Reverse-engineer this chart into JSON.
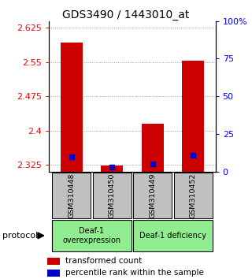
{
  "title": "GDS3490 / 1443010_at",
  "samples": [
    "GSM310448",
    "GSM310450",
    "GSM310449",
    "GSM310452"
  ],
  "red_values": [
    2.593,
    2.323,
    2.415,
    2.553
  ],
  "blue_values_pct": [
    10,
    3,
    5,
    11
  ],
  "y_min": 2.31,
  "y_max": 2.64,
  "y_ticks_red": [
    2.325,
    2.4,
    2.475,
    2.55,
    2.625
  ],
  "y_ticks_blue": [
    0,
    25,
    50,
    75,
    100
  ],
  "group0_label": "Deaf-1\noverexpression",
  "group1_label": "Deaf-1 deficiency",
  "group_color": "#90EE90",
  "bar_color": "#CC0000",
  "blue_color": "#0000CC",
  "bar_width": 0.55,
  "protocol_label": "protocol",
  "legend_red": "transformed count",
  "legend_blue": "percentile rank within the sample",
  "grid_color": "#999999",
  "sample_label_bg": "#c0c0c0",
  "title_fontsize": 10,
  "tick_fontsize": 8,
  "label_fontsize": 7.5
}
